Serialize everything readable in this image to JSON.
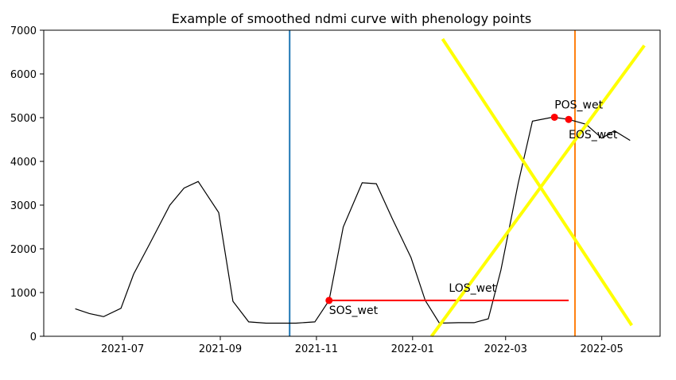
{
  "chart_data": {
    "type": "line",
    "title": "Example of smoothed ndmi curve with phenology points",
    "xlabel": "",
    "ylabel": "",
    "x_range": [
      "2021-05-12",
      "2022-06-07"
    ],
    "ylim": [
      0,
      7000
    ],
    "x_ticks": [
      {
        "date": "2021-07-01",
        "label": "2021-07"
      },
      {
        "date": "2021-09-01",
        "label": "2021-09"
      },
      {
        "date": "2021-11-01",
        "label": "2021-11"
      },
      {
        "date": "2022-01-01",
        "label": "2022-01"
      },
      {
        "date": "2022-03-01",
        "label": "2022-03"
      },
      {
        "date": "2022-05-01",
        "label": "2022-05"
      }
    ],
    "y_ticks": [
      0,
      1000,
      2000,
      3000,
      4000,
      5000,
      6000,
      7000
    ],
    "grid": false,
    "series": [
      {
        "color": "#000000",
        "points": [
          [
            "2021-06-01",
            630
          ],
          [
            "2021-06-10",
            520
          ],
          [
            "2021-06-19",
            450
          ],
          [
            "2021-06-30",
            640
          ],
          [
            "2021-07-08",
            1420
          ],
          [
            "2021-07-18",
            2100
          ],
          [
            "2021-07-31",
            3000
          ],
          [
            "2021-08-09",
            3390
          ],
          [
            "2021-08-18",
            3540
          ],
          [
            "2021-08-31",
            2830
          ],
          [
            "2021-09-09",
            800
          ],
          [
            "2021-09-19",
            330
          ],
          [
            "2021-09-30",
            300
          ],
          [
            "2021-10-09",
            300
          ],
          [
            "2021-10-19",
            300
          ],
          [
            "2021-10-31",
            330
          ],
          [
            "2021-11-09",
            820
          ],
          [
            "2021-11-18",
            2500
          ],
          [
            "2021-11-30",
            3510
          ],
          [
            "2021-12-09",
            3490
          ],
          [
            "2021-12-19",
            2700
          ],
          [
            "2021-12-31",
            1800
          ],
          [
            "2022-01-09",
            820
          ],
          [
            "2022-01-18",
            300
          ],
          [
            "2022-01-30",
            310
          ],
          [
            "2022-02-09",
            310
          ],
          [
            "2022-02-18",
            400
          ],
          [
            "2022-02-26",
            1510
          ],
          [
            "2022-03-09",
            3500
          ],
          [
            "2022-03-18",
            4920
          ],
          [
            "2022-03-31",
            5010
          ],
          [
            "2022-04-10",
            4960
          ],
          [
            "2022-04-21",
            4850
          ],
          [
            "2022-05-01",
            4530
          ],
          [
            "2022-05-09",
            4700
          ],
          [
            "2022-05-19",
            4480
          ]
        ]
      }
    ],
    "points": [
      {
        "label": "SOS_wet",
        "date": "2021-11-09",
        "y": 820,
        "color": "#ff0000"
      },
      {
        "label": "POS_wet",
        "date": "2022-04-01",
        "y": 5010,
        "color": "#ff0000"
      },
      {
        "label": "EOS_wet",
        "date": "2022-04-10",
        "y": 4960,
        "color": "#ff0000"
      }
    ],
    "los_line": {
      "label": "LOS_wet",
      "start": "2021-11-09",
      "end": "2022-04-10",
      "y": 820,
      "color": "#ff0000"
    },
    "vertical_lines": [
      {
        "date": "2021-10-15",
        "color": "#1f77b4"
      },
      {
        "date": "2022-04-14",
        "color": "#ff7f0e"
      }
    ],
    "cross_lines": [
      {
        "x1": "2022-01-20",
        "y1": 6800,
        "x2": "2022-05-20",
        "y2": 250,
        "color": "#ffff00"
      },
      {
        "x1": "2022-01-13",
        "y1": 0,
        "x2": "2022-05-28",
        "y2": 6650,
        "color": "#ffff00"
      }
    ]
  }
}
